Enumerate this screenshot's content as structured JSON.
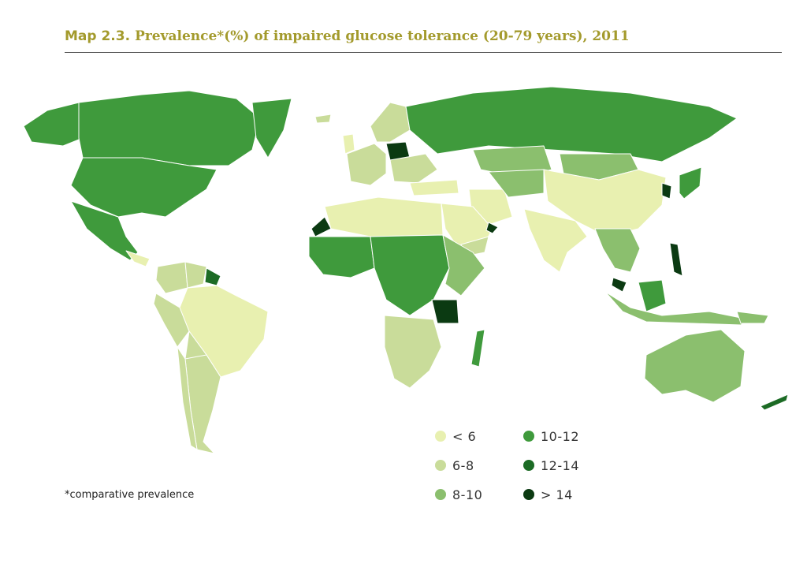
{
  "header": {
    "label": "Map 2.3.",
    "title": "Prevalence*(%) of impaired glucose tolerance (20-79 years), 2011"
  },
  "footnote": "*comparative prevalence",
  "legend": [
    {
      "label": "< 6",
      "color": "#e8f0b0"
    },
    {
      "label": "6-8",
      "color": "#c9dc9a"
    },
    {
      "label": "8-10",
      "color": "#8bbf6e"
    },
    {
      "label": "10-12",
      "color": "#3f9a3c"
    },
    {
      "label": "12-14",
      "color": "#1c6b25"
    },
    {
      "label": "> 14",
      "color": "#0b3a12"
    }
  ],
  "colors": {
    "lt6": "#e8f0b0",
    "c6_8": "#c9dc9a",
    "c8_10": "#8bbf6e",
    "c10_12": "#3f9a3c",
    "c12_14": "#1c6b25",
    "gt14": "#0b3a12"
  }
}
